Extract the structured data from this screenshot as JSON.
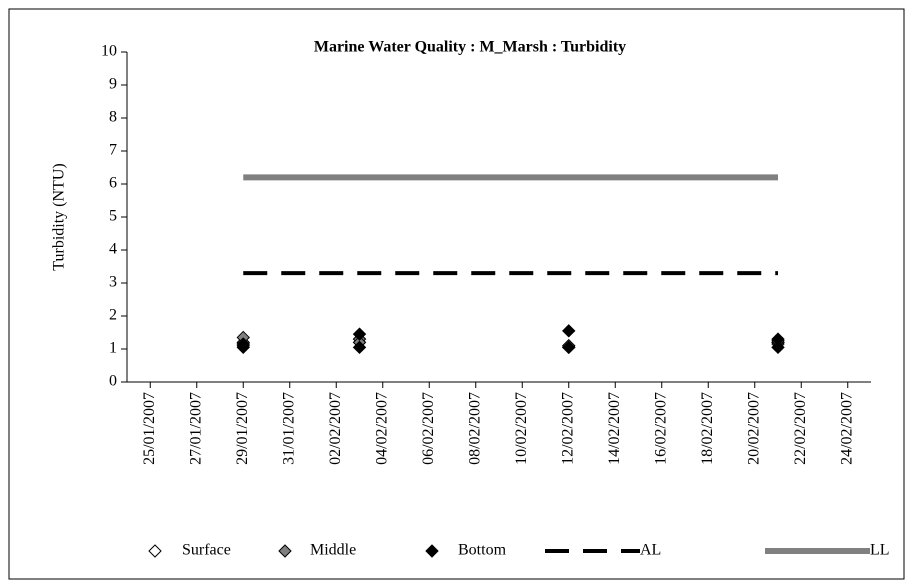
{
  "chart_data": {
    "type": "scatter",
    "title": "Marine Water Quality : M_Marsh  : Turbidity",
    "y_label": "Turbidity (NTU)",
    "xlim": [
      "24/01/2007",
      "25/02/2007"
    ],
    "xticks": [
      "25/01/2007",
      "27/01/2007",
      "29/01/2007",
      "31/01/2007",
      "02/02/2007",
      "04/02/2007",
      "06/02/2007",
      "08/02/2007",
      "10/02/2007",
      "12/02/2007",
      "14/02/2007",
      "16/02/2007",
      "18/02/2007",
      "20/02/2007",
      "22/02/2007",
      "24/02/2007"
    ],
    "ylim": [
      0,
      10
    ],
    "yticks": [
      0,
      1,
      2,
      3,
      4,
      5,
      6,
      7,
      8,
      9,
      10
    ],
    "legend": "bottom",
    "series": [
      {
        "name": "Surface",
        "color": "#ffffff",
        "kind": "points",
        "x": [
          "29/01/2007",
          "29/01/2007",
          "03/02/2007",
          "03/02/2007",
          "12/02/2007",
          "12/02/2007",
          "21/02/2007",
          "21/02/2007"
        ],
        "values": [
          1.2,
          1.1,
          1.2,
          1.3,
          1.05,
          1.1,
          1.15,
          1.2
        ]
      },
      {
        "name": "Middle",
        "color": "#808080",
        "kind": "points",
        "x": [
          "29/01/2007",
          "29/01/2007",
          "03/02/2007",
          "03/02/2007",
          "12/02/2007",
          "12/02/2007",
          "21/02/2007",
          "21/02/2007"
        ],
        "values": [
          1.35,
          1.15,
          1.3,
          1.2,
          1.05,
          1.1,
          1.2,
          1.25
        ]
      },
      {
        "name": "Bottom",
        "color": "#000000",
        "kind": "points",
        "x": [
          "29/01/2007",
          "29/01/2007",
          "03/02/2007",
          "03/02/2007",
          "12/02/2007",
          "12/02/2007",
          "21/02/2007",
          "21/02/2007"
        ],
        "values": [
          1.05,
          1.15,
          1.05,
          1.45,
          1.05,
          1.55,
          1.05,
          1.3
        ]
      },
      {
        "name": "AL",
        "color": "#000000",
        "kind": "line",
        "line_style": "dashed",
        "x": [
          "29/01/2007",
          "21/02/2007"
        ],
        "values": [
          3.3,
          3.3
        ]
      },
      {
        "name": "LL",
        "color": "#808080",
        "kind": "line",
        "line_style": "solid",
        "x": [
          "29/01/2007",
          "21/02/2007"
        ],
        "values": [
          6.2,
          6.2
        ]
      }
    ]
  }
}
